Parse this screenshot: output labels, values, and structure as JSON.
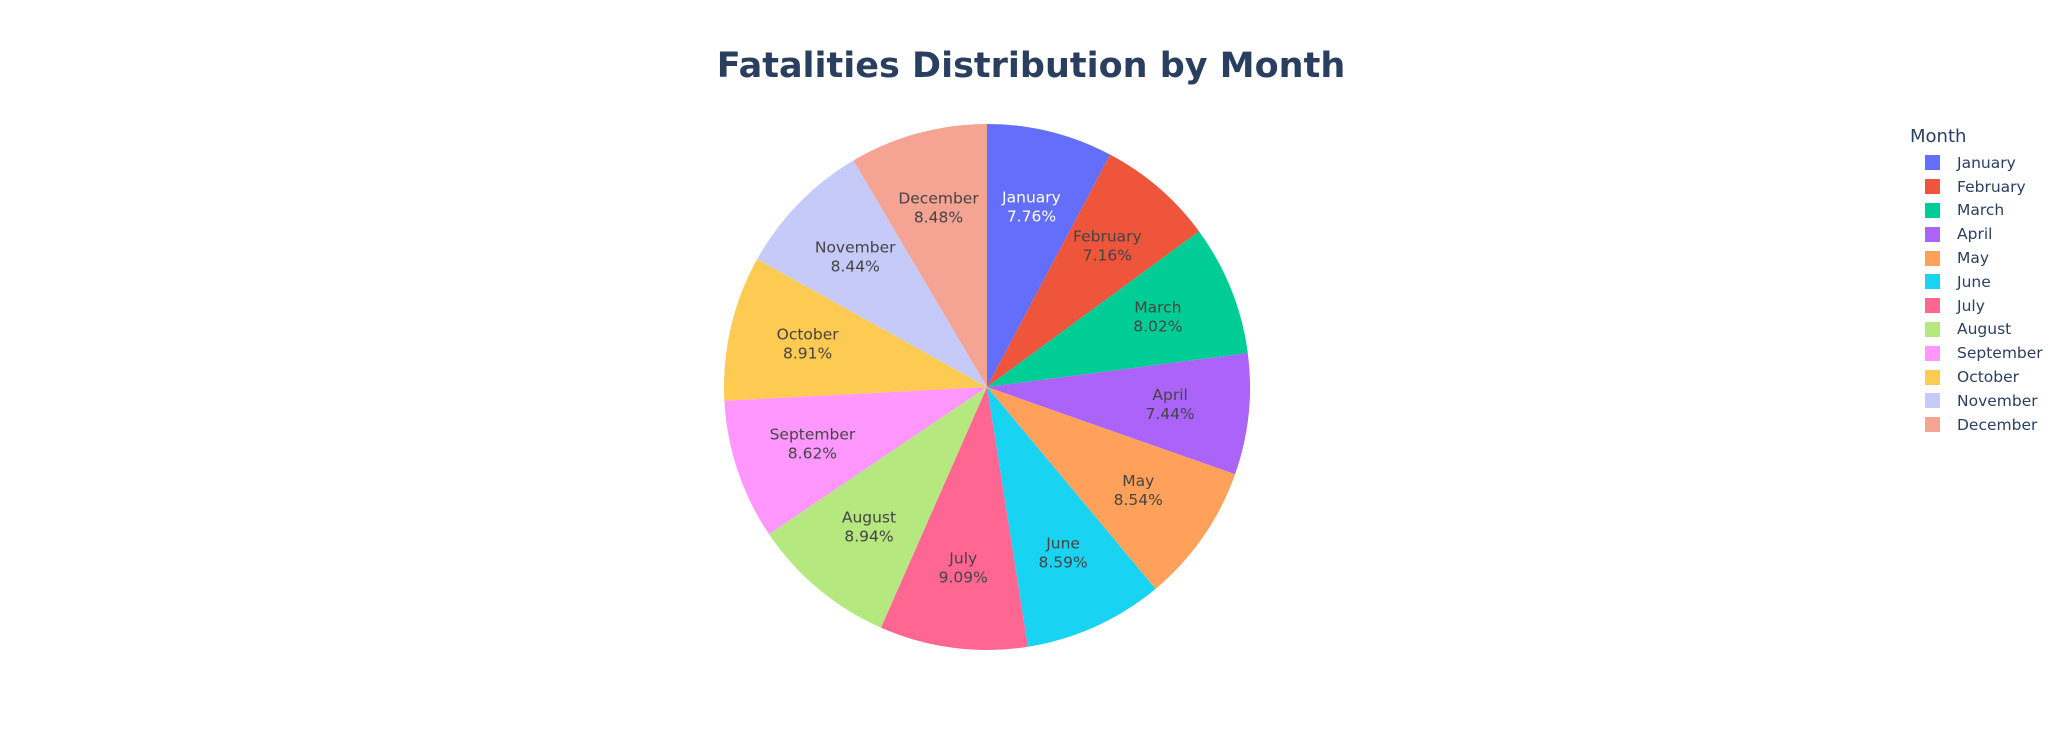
{
  "chart_data": {
    "type": "pie",
    "title": "Fatalities Distribution by Month",
    "legend_title": "Month",
    "legend_position": "right",
    "direction": "clockwise",
    "start": "top",
    "slices": [
      {
        "label": "January",
        "value": 7.76,
        "percent_text": "7.76%",
        "color": "#636efa",
        "text_color": "#ffffff"
      },
      {
        "label": "February",
        "value": 7.16,
        "percent_text": "7.16%",
        "color": "#EF553B",
        "text_color": "#444444"
      },
      {
        "label": "March",
        "value": 8.02,
        "percent_text": "8.02%",
        "color": "#00cc96",
        "text_color": "#444444"
      },
      {
        "label": "April",
        "value": 7.44,
        "percent_text": "7.44%",
        "color": "#ab63fa",
        "text_color": "#444444"
      },
      {
        "label": "May",
        "value": 8.54,
        "percent_text": "8.54%",
        "color": "#FFA15A",
        "text_color": "#444444"
      },
      {
        "label": "June",
        "value": 8.59,
        "percent_text": "8.59%",
        "color": "#19d3f3",
        "text_color": "#444444"
      },
      {
        "label": "July",
        "value": 9.09,
        "percent_text": "9.09%",
        "color": "#FF6692",
        "text_color": "#444444"
      },
      {
        "label": "August",
        "value": 8.94,
        "percent_text": "8.94%",
        "color": "#B6E880",
        "text_color": "#444444"
      },
      {
        "label": "September",
        "value": 8.62,
        "percent_text": "8.62%",
        "color": "#FF97FF",
        "text_color": "#444444"
      },
      {
        "label": "October",
        "value": 8.91,
        "percent_text": "8.91%",
        "color": "#FECB52",
        "text_color": "#444444"
      },
      {
        "label": "November",
        "value": 8.44,
        "percent_text": "8.44%",
        "color": "#c6caf9",
        "text_color": "#444444"
      },
      {
        "label": "December",
        "value": 8.48,
        "percent_text": "8.48%",
        "color": "#f5a493",
        "text_color": "#444444"
      }
    ]
  }
}
